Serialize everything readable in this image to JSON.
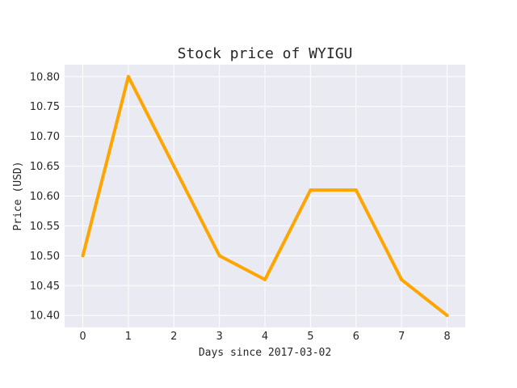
{
  "chart_data": {
    "type": "line",
    "title": "Stock price of WYIGU",
    "xlabel": "Days since 2017-03-02",
    "ylabel": "Price (USD)",
    "x": [
      0,
      1,
      2,
      3,
      4,
      5,
      6,
      7,
      8
    ],
    "x_ticks": [
      "0",
      "1",
      "2",
      "3",
      "4",
      "5",
      "6",
      "7",
      "8"
    ],
    "y_ticks": [
      "10.40",
      "10.45",
      "10.50",
      "10.55",
      "10.60",
      "10.65",
      "10.70",
      "10.75",
      "10.80"
    ],
    "xlim": [
      -0.4,
      8.4
    ],
    "ylim": [
      10.38,
      10.82
    ],
    "grid": true,
    "series": [
      {
        "values": [
          10.5,
          10.8,
          10.65,
          10.5,
          10.46,
          10.61,
          10.61,
          10.46,
          10.4
        ],
        "color": "#ffa500"
      }
    ],
    "colors": {
      "plot_background": "#eaeaf2",
      "grid": "#ffffff",
      "text": "#262626"
    }
  }
}
